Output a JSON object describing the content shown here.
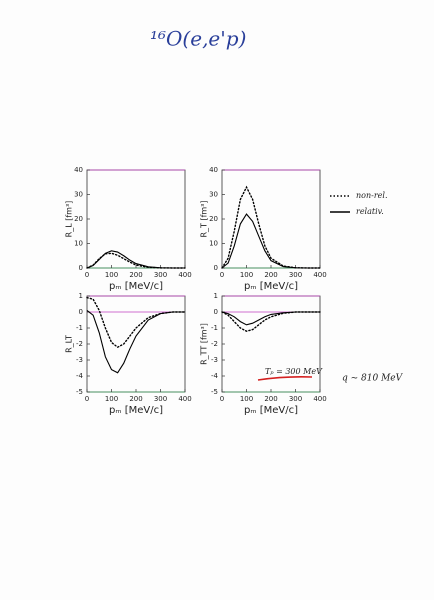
{
  "title": "¹⁶O(e,e'p)",
  "legend": [
    {
      "name": "non-rel.",
      "style": "dotted"
    },
    {
      "name": "relativ.",
      "style": "solid"
    }
  ],
  "notes": [
    "Tₚ = 300 MeV",
    "q ~ 810 MeV"
  ],
  "chart_data": [
    {
      "type": "line",
      "ylabel": "R_L [fm³]",
      "xlabel": "pₘ [MeV/c]",
      "x": [
        0,
        25,
        50,
        75,
        100,
        125,
        150,
        175,
        200,
        250,
        300,
        350,
        400
      ],
      "xlim": [
        0,
        400
      ],
      "xticks": [
        0,
        100,
        200,
        300,
        400
      ],
      "ylim": [
        0,
        40
      ],
      "yticks": [
        0,
        10,
        20,
        30,
        40
      ],
      "zero_line": false,
      "series": [
        {
          "style": "dotted",
          "color": "#000000",
          "values": [
            0,
            1.2,
            3.8,
            5.8,
            6,
            5.2,
            3.8,
            2.4,
            1.2,
            0.3,
            0.05,
            0,
            0
          ]
        },
        {
          "style": "solid",
          "color": "#000000",
          "values": [
            0,
            1,
            3.5,
            6,
            7,
            6.5,
            5,
            3.2,
            1.8,
            0.5,
            0.1,
            0,
            0
          ]
        }
      ]
    },
    {
      "type": "line",
      "ylabel": "R_T [fm³]",
      "xlabel": "pₘ [MeV/c]",
      "x": [
        0,
        25,
        50,
        75,
        100,
        125,
        150,
        175,
        200,
        250,
        300,
        350,
        400
      ],
      "xlim": [
        0,
        400
      ],
      "xticks": [
        0,
        100,
        200,
        300,
        400
      ],
      "ylim": [
        0,
        40
      ],
      "yticks": [
        0,
        10,
        20,
        30,
        40
      ],
      "zero_line": false,
      "series": [
        {
          "style": "dotted",
          "color": "#000000",
          "values": [
            0,
            4,
            15,
            28,
            33,
            28,
            18,
            9,
            4,
            0.8,
            0.1,
            0,
            0
          ]
        },
        {
          "style": "solid",
          "color": "#000000",
          "values": [
            0,
            2,
            9,
            18,
            22,
            19,
            13,
            7,
            3,
            0.6,
            0.1,
            0,
            0
          ]
        }
      ]
    },
    {
      "type": "line",
      "ylabel": "R_LT",
      "xlabel": "pₘ [MeV/c]",
      "x": [
        0,
        25,
        50,
        75,
        100,
        125,
        150,
        175,
        200,
        250,
        300,
        350,
        400
      ],
      "xlim": [
        0,
        400
      ],
      "xticks": [
        0,
        100,
        200,
        300,
        400
      ],
      "ylim": [
        -5,
        1
      ],
      "yticks": [
        -5,
        -4,
        -3,
        -2,
        -1,
        0,
        1
      ],
      "zero_line": true,
      "series": [
        {
          "style": "dotted",
          "color": "#000000",
          "values": [
            0.9,
            0.8,
            0.1,
            -1.0,
            -1.9,
            -2.2,
            -2.0,
            -1.5,
            -1.0,
            -0.35,
            -0.1,
            0,
            0
          ]
        },
        {
          "style": "solid",
          "color": "#000000",
          "values": [
            0.1,
            -0.2,
            -1.3,
            -2.8,
            -3.6,
            -3.8,
            -3.2,
            -2.3,
            -1.5,
            -0.5,
            -0.1,
            0,
            0
          ]
        }
      ]
    },
    {
      "type": "line",
      "ylabel": "R_TT [fm³]",
      "xlabel": "pₘ [MeV/c]",
      "x": [
        0,
        25,
        50,
        75,
        100,
        125,
        150,
        175,
        200,
        250,
        300,
        350,
        400
      ],
      "xlim": [
        0,
        400
      ],
      "xticks": [
        0,
        100,
        200,
        300,
        400
      ],
      "ylim": [
        -5,
        1
      ],
      "yticks": [
        -5,
        -4,
        -3,
        -2,
        -1,
        0,
        1
      ],
      "zero_line": true,
      "series": [
        {
          "style": "dotted",
          "color": "#000000",
          "values": [
            0,
            -0.2,
            -0.6,
            -1.0,
            -1.2,
            -1.1,
            -0.8,
            -0.5,
            -0.3,
            -0.08,
            0,
            0,
            0
          ]
        },
        {
          "style": "solid",
          "color": "#000000",
          "values": [
            0,
            -0.1,
            -0.3,
            -0.6,
            -0.8,
            -0.7,
            -0.5,
            -0.3,
            -0.15,
            -0.05,
            0,
            0,
            0
          ]
        }
      ]
    }
  ]
}
